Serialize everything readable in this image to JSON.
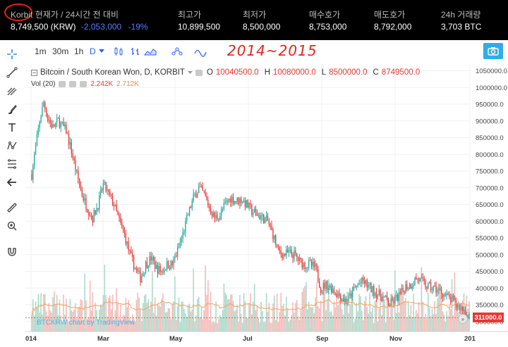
{
  "ticker": {
    "symbol": "Korbit",
    "header_label": "현재가 / 24시간 전 대비",
    "price": "8,749,500 (KRW)",
    "change": "-2,053,000",
    "change_pct": "-19%",
    "stats": [
      {
        "label": "최고가",
        "value": "10,899,500"
      },
      {
        "label": "최저가",
        "value": "8,500,000"
      },
      {
        "label": "매수호가",
        "value": "8,753,000"
      },
      {
        "label": "매도호가",
        "value": "8,792,000"
      },
      {
        "label": "24h 거래량",
        "value": "3,703 BTC"
      }
    ]
  },
  "toolbar": {
    "intervals": [
      "1m",
      "30m",
      "1h",
      "D"
    ],
    "active_interval": "D",
    "handwritten_note": "2014~2015"
  },
  "legend": {
    "title": "Bitcoin / South Korean Won, D, KORBIT",
    "open_label": "O",
    "open": "10040500.0",
    "high_label": "H",
    "high": "10080000.0",
    "low_label": "L",
    "low": "8500000.0",
    "close_label": "C",
    "close": "8749500.0",
    "volume_label": "Vol (20)",
    "volume_value": "2.242K",
    "volume_ma": "2.712K"
  },
  "credit": "BTCKRW chart by TradingView",
  "last_price_label": "311000.0",
  "colors": {
    "up": "#26a69a",
    "down": "#e53935",
    "volume_up": "#a8d8c8",
    "volume_down": "#f5b7b5",
    "volume_ma": "#f5a35c",
    "accent": "#2962ff"
  },
  "chart_data": {
    "type": "candlestick",
    "x_ticks": [
      "014",
      "Mar",
      "May",
      "Jul",
      "Sep",
      "Nov",
      "201"
    ],
    "y_ticks": [
      1050000,
      1000000,
      950000,
      900000,
      850000,
      800000,
      750000,
      700000,
      650000,
      600000,
      550000,
      500000,
      450000,
      400000,
      350000,
      300000
    ],
    "y_tick_labels": [
      "1050000.0",
      "1000000.0",
      "950000.0",
      "900000.0",
      "850000.0",
      "800000.0",
      "750000.0",
      "700000.0",
      "650000.0",
      "600000.0",
      "550000.0",
      "500000.0",
      "450000.0",
      "400000.0",
      "350000.0",
      "300000.0"
    ],
    "ylim": [
      270000,
      1070000
    ],
    "price_path": [
      [
        0,
        740000
      ],
      [
        3,
        820000
      ],
      [
        6,
        900000
      ],
      [
        9,
        955000
      ],
      [
        12,
        910000
      ],
      [
        16,
        880000
      ],
      [
        20,
        900000
      ],
      [
        26,
        870000
      ],
      [
        30,
        810000
      ],
      [
        34,
        740000
      ],
      [
        38,
        680000
      ],
      [
        42,
        640000
      ],
      [
        46,
        610000
      ],
      [
        50,
        650000
      ],
      [
        54,
        710000
      ],
      [
        58,
        680000
      ],
      [
        62,
        650000
      ],
      [
        66,
        600000
      ],
      [
        70,
        560000
      ],
      [
        74,
        500000
      ],
      [
        78,
        460000
      ],
      [
        82,
        430000
      ],
      [
        86,
        470000
      ],
      [
        90,
        490000
      ],
      [
        94,
        460000
      ],
      [
        98,
        450000
      ],
      [
        102,
        470000
      ],
      [
        106,
        470000
      ],
      [
        110,
        510000
      ],
      [
        114,
        560000
      ],
      [
        118,
        620000
      ],
      [
        122,
        670000
      ],
      [
        126,
        700000
      ],
      [
        130,
        680000
      ],
      [
        134,
        640000
      ],
      [
        138,
        610000
      ],
      [
        142,
        620000
      ],
      [
        146,
        650000
      ],
      [
        150,
        670000
      ],
      [
        154,
        660000
      ],
      [
        158,
        665000
      ],
      [
        162,
        650000
      ],
      [
        166,
        630000
      ],
      [
        170,
        620000
      ],
      [
        174,
        610000
      ],
      [
        178,
        600000
      ],
      [
        182,
        560000
      ],
      [
        186,
        510000
      ],
      [
        190,
        500000
      ],
      [
        194,
        505000
      ],
      [
        198,
        500000
      ],
      [
        202,
        480000
      ],
      [
        206,
        470000
      ],
      [
        210,
        470000
      ],
      [
        214,
        460000
      ],
      [
        218,
        400000
      ],
      [
        222,
        410000
      ],
      [
        226,
        400000
      ],
      [
        230,
        385000
      ],
      [
        234,
        370000
      ],
      [
        238,
        360000
      ],
      [
        242,
        390000
      ],
      [
        246,
        410000
      ],
      [
        250,
        420000
      ],
      [
        254,
        405000
      ],
      [
        258,
        390000
      ],
      [
        262,
        380000
      ],
      [
        266,
        370000
      ],
      [
        270,
        350000
      ],
      [
        274,
        365000
      ],
      [
        278,
        380000
      ],
      [
        282,
        405000
      ],
      [
        286,
        410000
      ],
      [
        290,
        430000
      ],
      [
        294,
        420000
      ],
      [
        298,
        405000
      ],
      [
        302,
        400000
      ],
      [
        306,
        395000
      ],
      [
        310,
        385000
      ],
      [
        314,
        370000
      ],
      [
        318,
        360000
      ],
      [
        322,
        345000
      ],
      [
        326,
        335000
      ],
      [
        330,
        311000
      ]
    ],
    "volume_note": "daily volume bars, green on up days and red on down days, with orange moving average line"
  }
}
